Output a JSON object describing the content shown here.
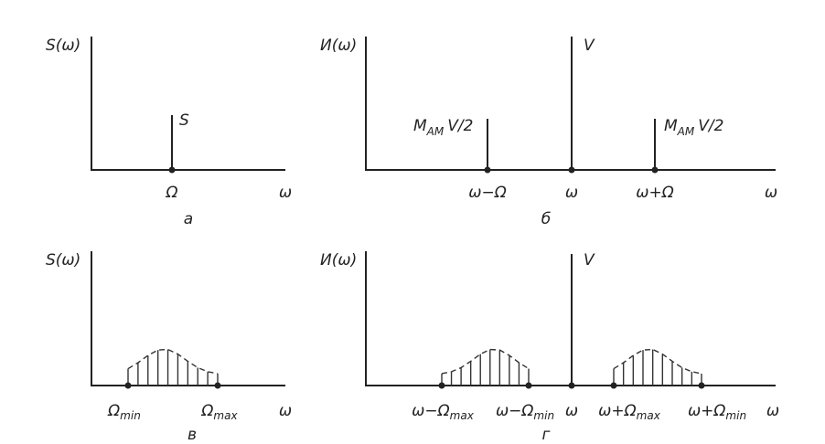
{
  "panel_a": {
    "y_label": "S(ω)",
    "line_label": "S",
    "ticks": [
      {
        "main": "Ω"
      }
    ],
    "x_label": "ω",
    "caption": "а"
  },
  "panel_b": {
    "y_label": "И(ω)",
    "carrier_label": "V",
    "left_side_label": {
      "main": "M",
      "sub": "AM",
      "rest": "V/2"
    },
    "right_side_label": {
      "main": "M",
      "sub": "AM",
      "rest": "V/2"
    },
    "ticks": [
      {
        "main": "ω−Ω"
      },
      {
        "main": "ω"
      },
      {
        "main": "ω+Ω"
      }
    ],
    "x_label": "ω",
    "caption": "б"
  },
  "panel_c": {
    "y_label": "S(ω)",
    "ticks": [
      {
        "main": "Ω",
        "sub": "min"
      },
      {
        "main": "Ω",
        "sub": "max"
      }
    ],
    "x_label": "ω",
    "caption": "в"
  },
  "panel_d": {
    "y_label": "И(ω)",
    "carrier_label": "V",
    "ticks": [
      {
        "main": "ω−Ω",
        "sub": "max"
      },
      {
        "main": "ω−Ω",
        "sub": "min"
      },
      {
        "main": "ω"
      },
      {
        "main": "ω+Ω",
        "sub": "max"
      },
      {
        "main": "ω+Ω",
        "sub": "min"
      }
    ],
    "x_label": "ω",
    "caption": "г"
  }
}
